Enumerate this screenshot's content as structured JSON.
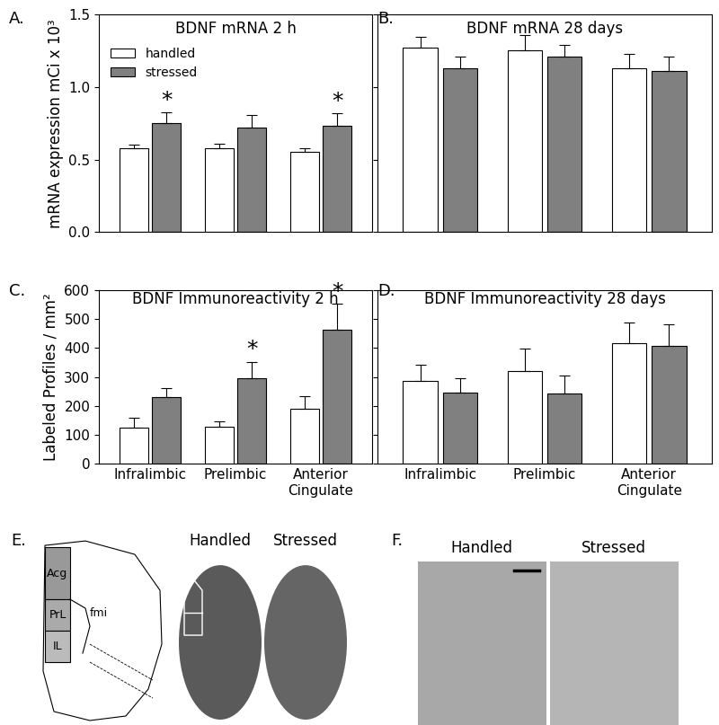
{
  "chart_data": [
    {
      "type": "bar",
      "panel": "A.",
      "title": "BDNF mRNA 2 h",
      "y_label": "mRNA expression mCi x 10³",
      "categories": [
        "Infralimbic",
        "Prelimbic",
        "Anterior\nCingulate"
      ],
      "series": [
        {
          "name": "handled",
          "color": "#ffffff",
          "values": [
            0.575,
            0.575,
            0.555
          ],
          "errors": [
            0.03,
            0.035,
            0.02
          ]
        },
        {
          "name": "stressed",
          "color": "#808080",
          "values": [
            0.75,
            0.72,
            0.735
          ],
          "errors": [
            0.075,
            0.09,
            0.085
          ]
        }
      ],
      "ylim": [
        0,
        1.5
      ],
      "yticks": [
        0.0,
        0.5,
        1.0,
        1.5
      ],
      "legend": "upper left",
      "tick_labels": "y",
      "annotations": [
        {
          "text": "*",
          "category": "Infralimbic",
          "series": "stressed"
        },
        {
          "text": "*",
          "category": "Anterior\nCingulate",
          "series": "stressed"
        }
      ]
    },
    {
      "type": "bar",
      "panel": "B.",
      "title": "BDNF mRNA 28 days",
      "categories": [
        "Infralimbic",
        "Prelimbic",
        "Anterior\nCingulate"
      ],
      "series": [
        {
          "name": "handled",
          "color": "#ffffff",
          "values": [
            1.27,
            1.25,
            1.13
          ],
          "errors": [
            0.075,
            0.11,
            0.1
          ]
        },
        {
          "name": "stressed",
          "color": "#808080",
          "values": [
            1.13,
            1.21,
            1.11
          ],
          "errors": [
            0.08,
            0.08,
            0.1
          ]
        }
      ],
      "ylim": [
        0,
        1.5
      ],
      "yticks": [
        0.0,
        0.5,
        1.0,
        1.5
      ],
      "tick_labels": false
    },
    {
      "type": "bar",
      "panel": "C.",
      "title": "BDNF Immunoreactivity 2 h",
      "y_label": "Labeled Profiles / mm²",
      "categories": [
        "Infralimbic",
        "Prelimbic",
        "Anterior\nCingulate"
      ],
      "series": [
        {
          "name": "handled",
          "color": "#ffffff",
          "values": [
            125,
            128,
            190
          ],
          "errors": [
            33,
            18,
            45
          ]
        },
        {
          "name": "stressed",
          "color": "#808080",
          "values": [
            230,
            297,
            463
          ],
          "errors": [
            33,
            55,
            90
          ]
        }
      ],
      "ylim": [
        0,
        600
      ],
      "yticks": [
        0,
        100,
        200,
        300,
        400,
        500,
        600
      ],
      "annotations": [
        {
          "text": "*",
          "category": "Prelimbic",
          "series": "stressed"
        },
        {
          "text": "*",
          "category": "Anterior\nCingulate",
          "series": "stressed"
        }
      ]
    },
    {
      "type": "bar",
      "panel": "D.",
      "title": "BDNF Immunoreactivity 28 days",
      "categories": [
        "Infralimbic",
        "Prelimbic",
        "Anterior\nCingulate"
      ],
      "series": [
        {
          "name": "handled",
          "color": "#ffffff",
          "values": [
            287,
            320,
            418
          ],
          "errors": [
            55,
            77,
            70
          ]
        },
        {
          "name": "stressed",
          "color": "#808080",
          "values": [
            247,
            243,
            408
          ],
          "errors": [
            48,
            62,
            75
          ]
        }
      ],
      "ylim": [
        0,
        600
      ],
      "yticks": [
        0,
        100,
        200,
        300,
        400,
        500,
        600
      ],
      "tick_labels": "x"
    }
  ],
  "panels": {
    "E": {
      "label": "E.",
      "atlas_labels": [
        "Acg",
        "PrL",
        "IL",
        "fmi"
      ],
      "image_labels": [
        "Handled",
        "Stressed"
      ]
    },
    "F": {
      "label": "F.",
      "image_labels": [
        "Handled",
        "Stressed"
      ]
    }
  }
}
